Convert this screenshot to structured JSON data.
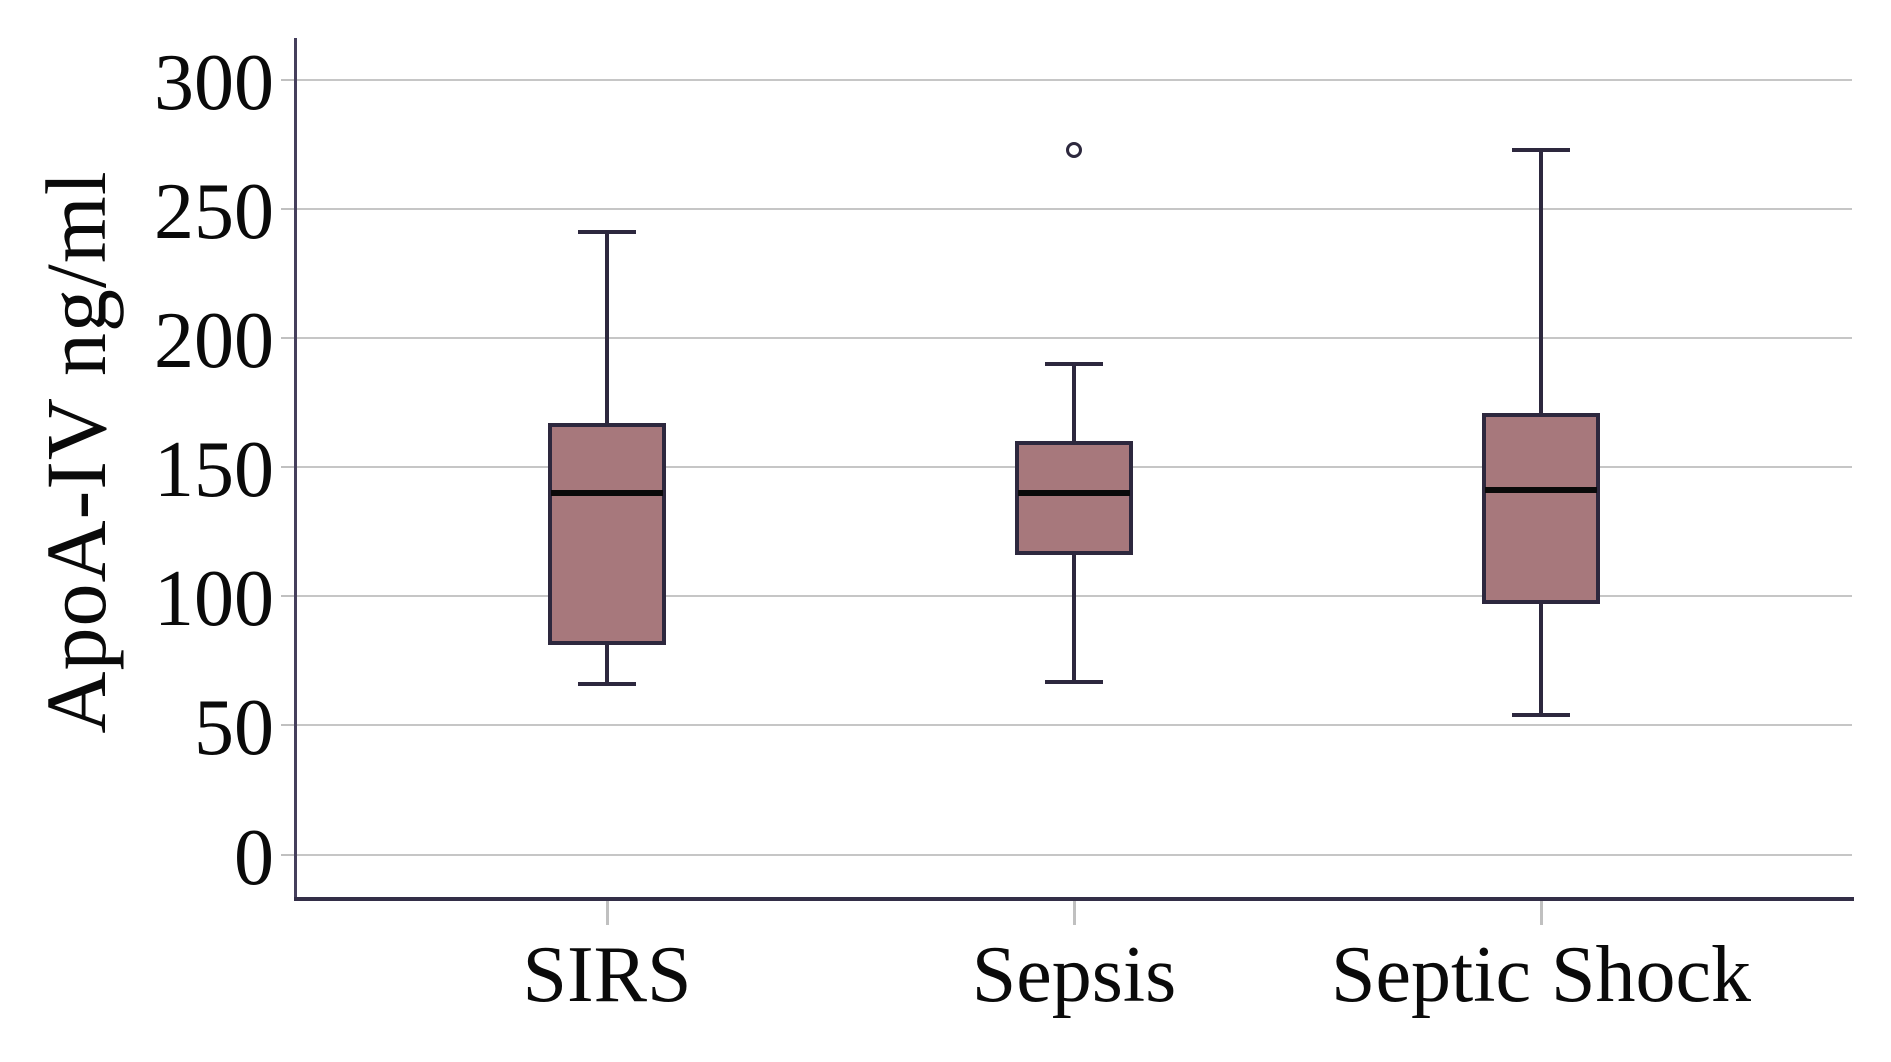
{
  "chart_data": {
    "type": "boxplot",
    "title": "",
    "ylabel": "ApoA-IV ng/ml",
    "xlabel": "",
    "categories": [
      "SIRS",
      "Sepsis",
      "Septic Shock"
    ],
    "yticks": [
      0,
      50,
      100,
      150,
      200,
      250,
      300
    ],
    "ylim": [
      0,
      300
    ],
    "grid": "horizontal",
    "legend": "none",
    "series": [
      {
        "name": "SIRS",
        "whisker_low": 66,
        "q1": 81,
        "median": 140,
        "q3": 167,
        "whisker_high": 241,
        "outliers": []
      },
      {
        "name": "Sepsis",
        "whisker_low": 67,
        "q1": 116,
        "median": 140,
        "q3": 160,
        "whisker_high": 190,
        "outliers": [
          273
        ]
      },
      {
        "name": "Septic Shock",
        "whisker_low": 54,
        "q1": 97,
        "median": 141,
        "q3": 171,
        "whisker_high": 273,
        "outliers": []
      }
    ],
    "colors": {
      "box_fill": "#a7787c",
      "box_border": "#2d283e",
      "median": "#0a0a0a",
      "whisker": "#2d283e",
      "gridline": "#c6c6c6",
      "tick": "#c0c0c0",
      "axis_y": "#453f5c",
      "axis_x": "#332e47",
      "outlier": "#2d283e",
      "text": "#0a0a0a",
      "background": "#ffffff"
    }
  }
}
